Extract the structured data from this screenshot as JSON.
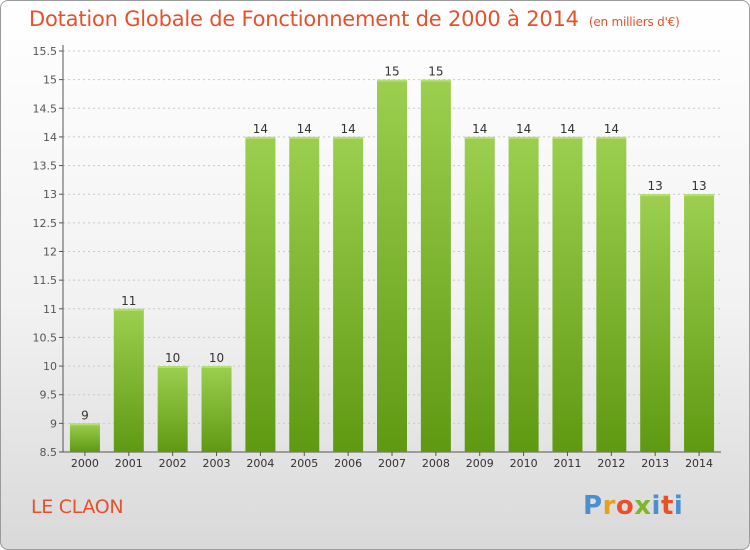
{
  "header": {
    "title": "Dotation Globale de Fonctionnement de 2000 à 2014",
    "unit": "(en milliers d'€)"
  },
  "footer": {
    "commune": "LE CLAON",
    "logo": "Proxiti"
  },
  "colors": {
    "bar_light": "#9ccf4f",
    "bar_dark": "#5f9912",
    "title": "#e8502a",
    "axis": "#555555",
    "grid": "#c8c8c8"
  },
  "chart_data": {
    "type": "bar",
    "title": "Dotation Globale de Fonctionnement de 2000 à 2014",
    "ylim": [
      8.5,
      15.5
    ],
    "yticks": [
      8.5,
      9,
      9.5,
      10,
      10.5,
      11,
      11.5,
      12,
      12.5,
      13,
      13.5,
      14,
      14.5,
      15,
      15.5
    ],
    "ytick_labels": [
      "8.5",
      "9",
      "9.5",
      "10",
      "10.5",
      "11",
      "11.5",
      "12",
      "12.5",
      "13",
      "13.5",
      "14",
      "14.5",
      "15",
      "15.5"
    ],
    "grid": true,
    "categories": [
      "2000",
      "2001",
      "2002",
      "2003",
      "2004",
      "2005",
      "2006",
      "2007",
      "2008",
      "2009",
      "2010",
      "2011",
      "2012",
      "2013",
      "2014"
    ],
    "values": [
      9,
      11,
      10,
      10,
      14,
      14,
      14,
      15,
      15,
      14,
      14,
      14,
      14,
      13,
      13
    ],
    "value_labels": [
      "9",
      "11",
      "10",
      "10",
      "14",
      "14",
      "14",
      "15",
      "15",
      "14",
      "14",
      "14",
      "14",
      "13",
      "13"
    ]
  }
}
